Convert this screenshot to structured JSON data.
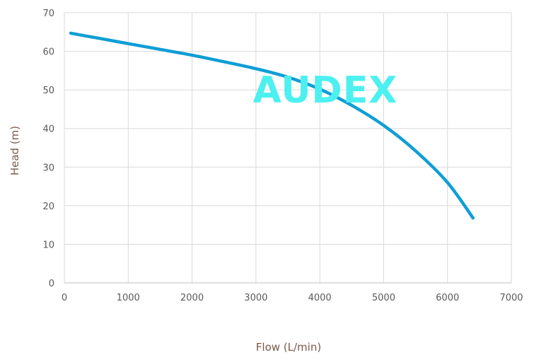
{
  "chart_data": {
    "type": "line",
    "title": "",
    "xlabel": "Flow (L/min)",
    "ylabel": "Head (m)",
    "xlim": [
      0,
      7000
    ],
    "ylim": [
      0,
      70
    ],
    "x_ticks": [
      "0",
      "1000",
      "2000",
      "3000",
      "4000",
      "5000",
      "6000",
      "7000"
    ],
    "y_ticks": [
      "0",
      "10",
      "20",
      "30",
      "40",
      "50",
      "60",
      "70"
    ],
    "grid": true,
    "legend": "none",
    "series": [
      {
        "color": "#0f9ed5",
        "x": [
          100,
          500,
          1000,
          1500,
          2000,
          2500,
          3000,
          3500,
          4000,
          4500,
          5000,
          5500,
          6000,
          6400
        ],
        "y": [
          64.7,
          63.5,
          62.0,
          60.5,
          59.0,
          57.3,
          55.5,
          53.3,
          50.2,
          46.0,
          40.8,
          34.2,
          26.0,
          16.8
        ]
      }
    ]
  },
  "watermark": {
    "text": "AUDEX"
  }
}
